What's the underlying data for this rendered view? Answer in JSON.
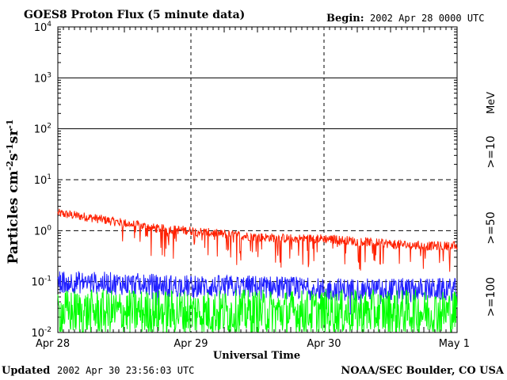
{
  "header": {
    "title": "GOES8 Proton Flux (5 minute data)",
    "begin_label": "Begin:",
    "begin_value": "2002 Apr 28 0000 UTC"
  },
  "footer": {
    "updated_label": "Updated",
    "updated_value": "2002 Apr 30 23:56:03 UTC",
    "credit": "NOAA/SEC Boulder, CO USA"
  },
  "chart_data": {
    "type": "line",
    "title": "GOES8 Proton Flux (5 minute data)",
    "xlabel": "Universal Time",
    "ylabel": "Particles cm-2s-1sr-1",
    "yscale": "log",
    "ylim": [
      0.01,
      10000
    ],
    "x_ticks": [
      "Apr 28",
      "Apr 29",
      "Apr 30",
      "May 1"
    ],
    "y_ticks": [
      {
        "base": "10",
        "exp": "-2"
      },
      {
        "base": "10",
        "exp": "-1"
      },
      {
        "base": "10",
        "exp": "0"
      },
      {
        "base": "10",
        "exp": "1"
      },
      {
        "base": "10",
        "exp": "2"
      },
      {
        "base": "10",
        "exp": "3"
      },
      {
        "base": "10",
        "exp": "4"
      }
    ],
    "legend_unit": "MeV",
    "grid": true,
    "legend": "right",
    "series": [
      {
        "name": ">=10",
        "color": "#ff2000",
        "x": [
          "2002-04-28 00:00",
          "2002-04-28 06:00",
          "2002-04-28 12:00",
          "2002-04-28 18:00",
          "2002-04-29 00:00",
          "2002-04-29 06:00",
          "2002-04-29 12:00",
          "2002-04-29 18:00",
          "2002-04-30 00:00",
          "2002-04-30 06:00",
          "2002-04-30 12:00",
          "2002-04-30 18:00",
          "2002-05-01 00:00"
        ],
        "values": [
          2.2,
          1.8,
          1.4,
          1.1,
          1.0,
          0.85,
          0.75,
          0.7,
          0.7,
          0.62,
          0.55,
          0.5,
          0.5
        ]
      },
      {
        "name": ">=50",
        "color": "#2020ff",
        "x": [
          "2002-04-28 00:00",
          "2002-04-28 12:00",
          "2002-04-29 00:00",
          "2002-04-29 12:00",
          "2002-04-30 00:00",
          "2002-04-30 12:00",
          "2002-05-01 00:00"
        ],
        "values": [
          0.1,
          0.09,
          0.08,
          0.08,
          0.07,
          0.07,
          0.07
        ]
      },
      {
        "name": ">=100",
        "color": "#00ff00",
        "x": [
          "2002-04-28 00:00",
          "2002-04-28 12:00",
          "2002-04-29 00:00",
          "2002-04-29 12:00",
          "2002-04-30 00:00",
          "2002-04-30 12:00",
          "2002-05-01 00:00"
        ],
        "values": [
          0.025,
          0.025,
          0.025,
          0.025,
          0.025,
          0.025,
          0.025
        ]
      }
    ]
  }
}
